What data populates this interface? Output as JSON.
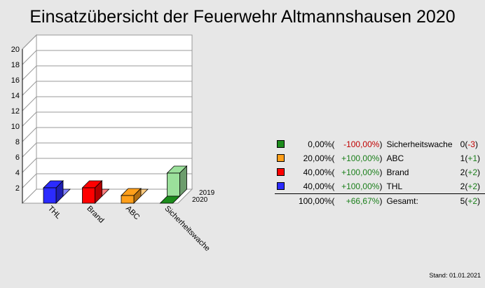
{
  "title": "Einsatzübersicht der Feuerwehr Altmannshausen 2020",
  "stand": "Stand: 01.01.2021",
  "chart_data": {
    "type": "bar",
    "categories": [
      "THL",
      "Brand",
      "ABC",
      "Sicherheitswache"
    ],
    "series": [
      {
        "name": "2020",
        "values": [
          2,
          2,
          1,
          0
        ],
        "colors": [
          "#2b2bff",
          "#ff0000",
          "#ff9f1a",
          "#1c8c1c"
        ]
      },
      {
        "name": "2019",
        "values": [
          0,
          0,
          0,
          3
        ],
        "colors": [
          "#8484ff",
          "#ff8080",
          "#ffcc80",
          "#9be09b"
        ]
      }
    ],
    "yticks": [
      2,
      4,
      6,
      8,
      10,
      12,
      14,
      16,
      18,
      20
    ],
    "ylim": [
      0,
      20
    ],
    "grid": true,
    "depth_labels": [
      "2019",
      "2020"
    ]
  },
  "legend": {
    "rows": [
      {
        "color": "#1c8c1c",
        "pct": "0,00%",
        "chg": "-100,00%",
        "sign": "neg",
        "label": "Sicherheitswache",
        "count": "0",
        "cchg": "-3",
        "csign": "neg"
      },
      {
        "color": "#ff9f1a",
        "pct": "20,00%",
        "chg": "+100,00%",
        "sign": "pos",
        "label": "ABC",
        "count": "1",
        "cchg": "+1",
        "csign": "pos"
      },
      {
        "color": "#ff0000",
        "pct": "40,00%",
        "chg": "+100,00%",
        "sign": "pos",
        "label": "Brand",
        "count": "2",
        "cchg": "+2",
        "csign": "pos"
      },
      {
        "color": "#2b2bff",
        "pct": "40,00%",
        "chg": "+100,00%",
        "sign": "pos",
        "label": "THL",
        "count": "2",
        "cchg": "+2",
        "csign": "pos"
      }
    ],
    "total": {
      "pct": "100,00%",
      "chg": "+66,67%",
      "label": "Gesamt:",
      "count": "5",
      "cchg": "+2"
    }
  }
}
